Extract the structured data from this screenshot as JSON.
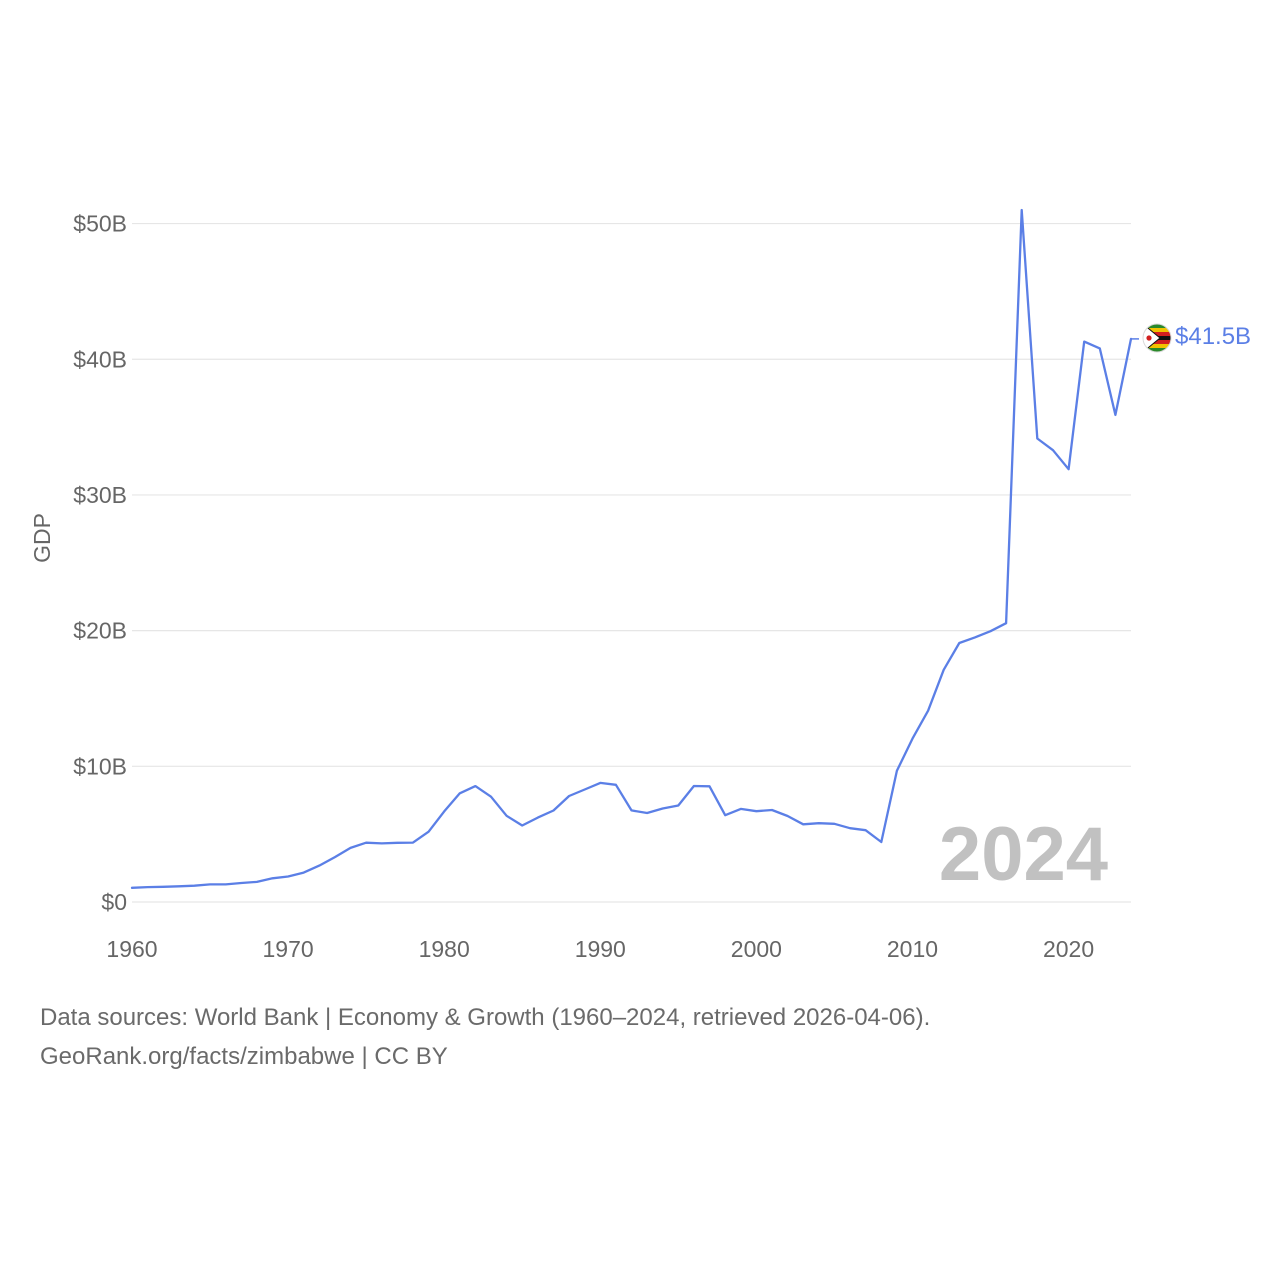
{
  "chart_data": {
    "type": "line",
    "ylabel": "GDP",
    "xlabel": "",
    "ylim": [
      0,
      51000000000
    ],
    "xlim": [
      1960,
      2024
    ],
    "yticks": [
      {
        "value": 0,
        "label": "$0"
      },
      {
        "value": 10000000000,
        "label": "$10B"
      },
      {
        "value": 20000000000,
        "label": "$20B"
      },
      {
        "value": 30000000000,
        "label": "$30B"
      },
      {
        "value": 40000000000,
        "label": "$40B"
      },
      {
        "value": 50000000000,
        "label": "$50B"
      }
    ],
    "xticks": [
      {
        "value": 1960,
        "label": "1960"
      },
      {
        "value": 1970,
        "label": "1970"
      },
      {
        "value": 1980,
        "label": "1980"
      },
      {
        "value": 1990,
        "label": "1990"
      },
      {
        "value": 2000,
        "label": "2000"
      },
      {
        "value": 2010,
        "label": "2010"
      },
      {
        "value": 2020,
        "label": "2020"
      }
    ],
    "grid": true,
    "series": [
      {
        "color": "#5b7fe6",
        "x": [
          1960,
          1961,
          1962,
          1963,
          1964,
          1965,
          1966,
          1967,
          1968,
          1969,
          1970,
          1971,
          1972,
          1973,
          1974,
          1975,
          1976,
          1977,
          1978,
          1979,
          1980,
          1981,
          1982,
          1983,
          1984,
          1985,
          1986,
          1987,
          1988,
          1989,
          1990,
          1991,
          1992,
          1993,
          1994,
          1995,
          1996,
          1997,
          1998,
          1999,
          2000,
          2001,
          2002,
          2003,
          2004,
          2005,
          2006,
          2007,
          2008,
          2009,
          2010,
          2011,
          2012,
          2013,
          2014,
          2015,
          2016,
          2017,
          2018,
          2019,
          2020,
          2021,
          2022,
          2023,
          2024
        ],
        "y": [
          1050000000,
          1100000000,
          1120000000,
          1160000000,
          1200000000,
          1300000000,
          1300000000,
          1400000000,
          1480000000,
          1750000000,
          1880000000,
          2170000000,
          2680000000,
          3310000000,
          3990000000,
          4370000000,
          4320000000,
          4360000000,
          4380000000,
          5180000000,
          6680000000,
          8010000000,
          8540000000,
          7760000000,
          6350000000,
          5640000000,
          6220000000,
          6740000000,
          7810000000,
          8290000000,
          8780000000,
          8640000000,
          6750000000,
          6560000000,
          6890000000,
          7110000000,
          8550000000,
          8530000000,
          6400000000,
          6860000000,
          6690000000,
          6780000000,
          6340000000,
          5730000000,
          5810000000,
          5760000000,
          5440000000,
          5290000000,
          4420000000,
          9670000000,
          12040000000,
          14100000000,
          17110000000,
          19090000000,
          19500000000,
          19960000000,
          20550000000,
          51000000000,
          34160000000,
          33300000000,
          31900000000,
          41300000000,
          40800000000,
          35900000000,
          41500000000
        ]
      }
    ],
    "end_label": "$41.5B",
    "year_label": "2024"
  },
  "footer": {
    "sources": "Data sources: World Bank | Economy & Growth (1960–2024, retrieved 2026-04-06).",
    "credit": "GeoRank.org/facts/zimbabwe | CC BY"
  },
  "colors": {
    "line": "#5b7fe6",
    "grid": "#e6e6e6",
    "axis_text": "#666666",
    "year_watermark": "#c1c1c1"
  },
  "icons": {
    "end_marker": "zimbabwe-flag-icon"
  }
}
